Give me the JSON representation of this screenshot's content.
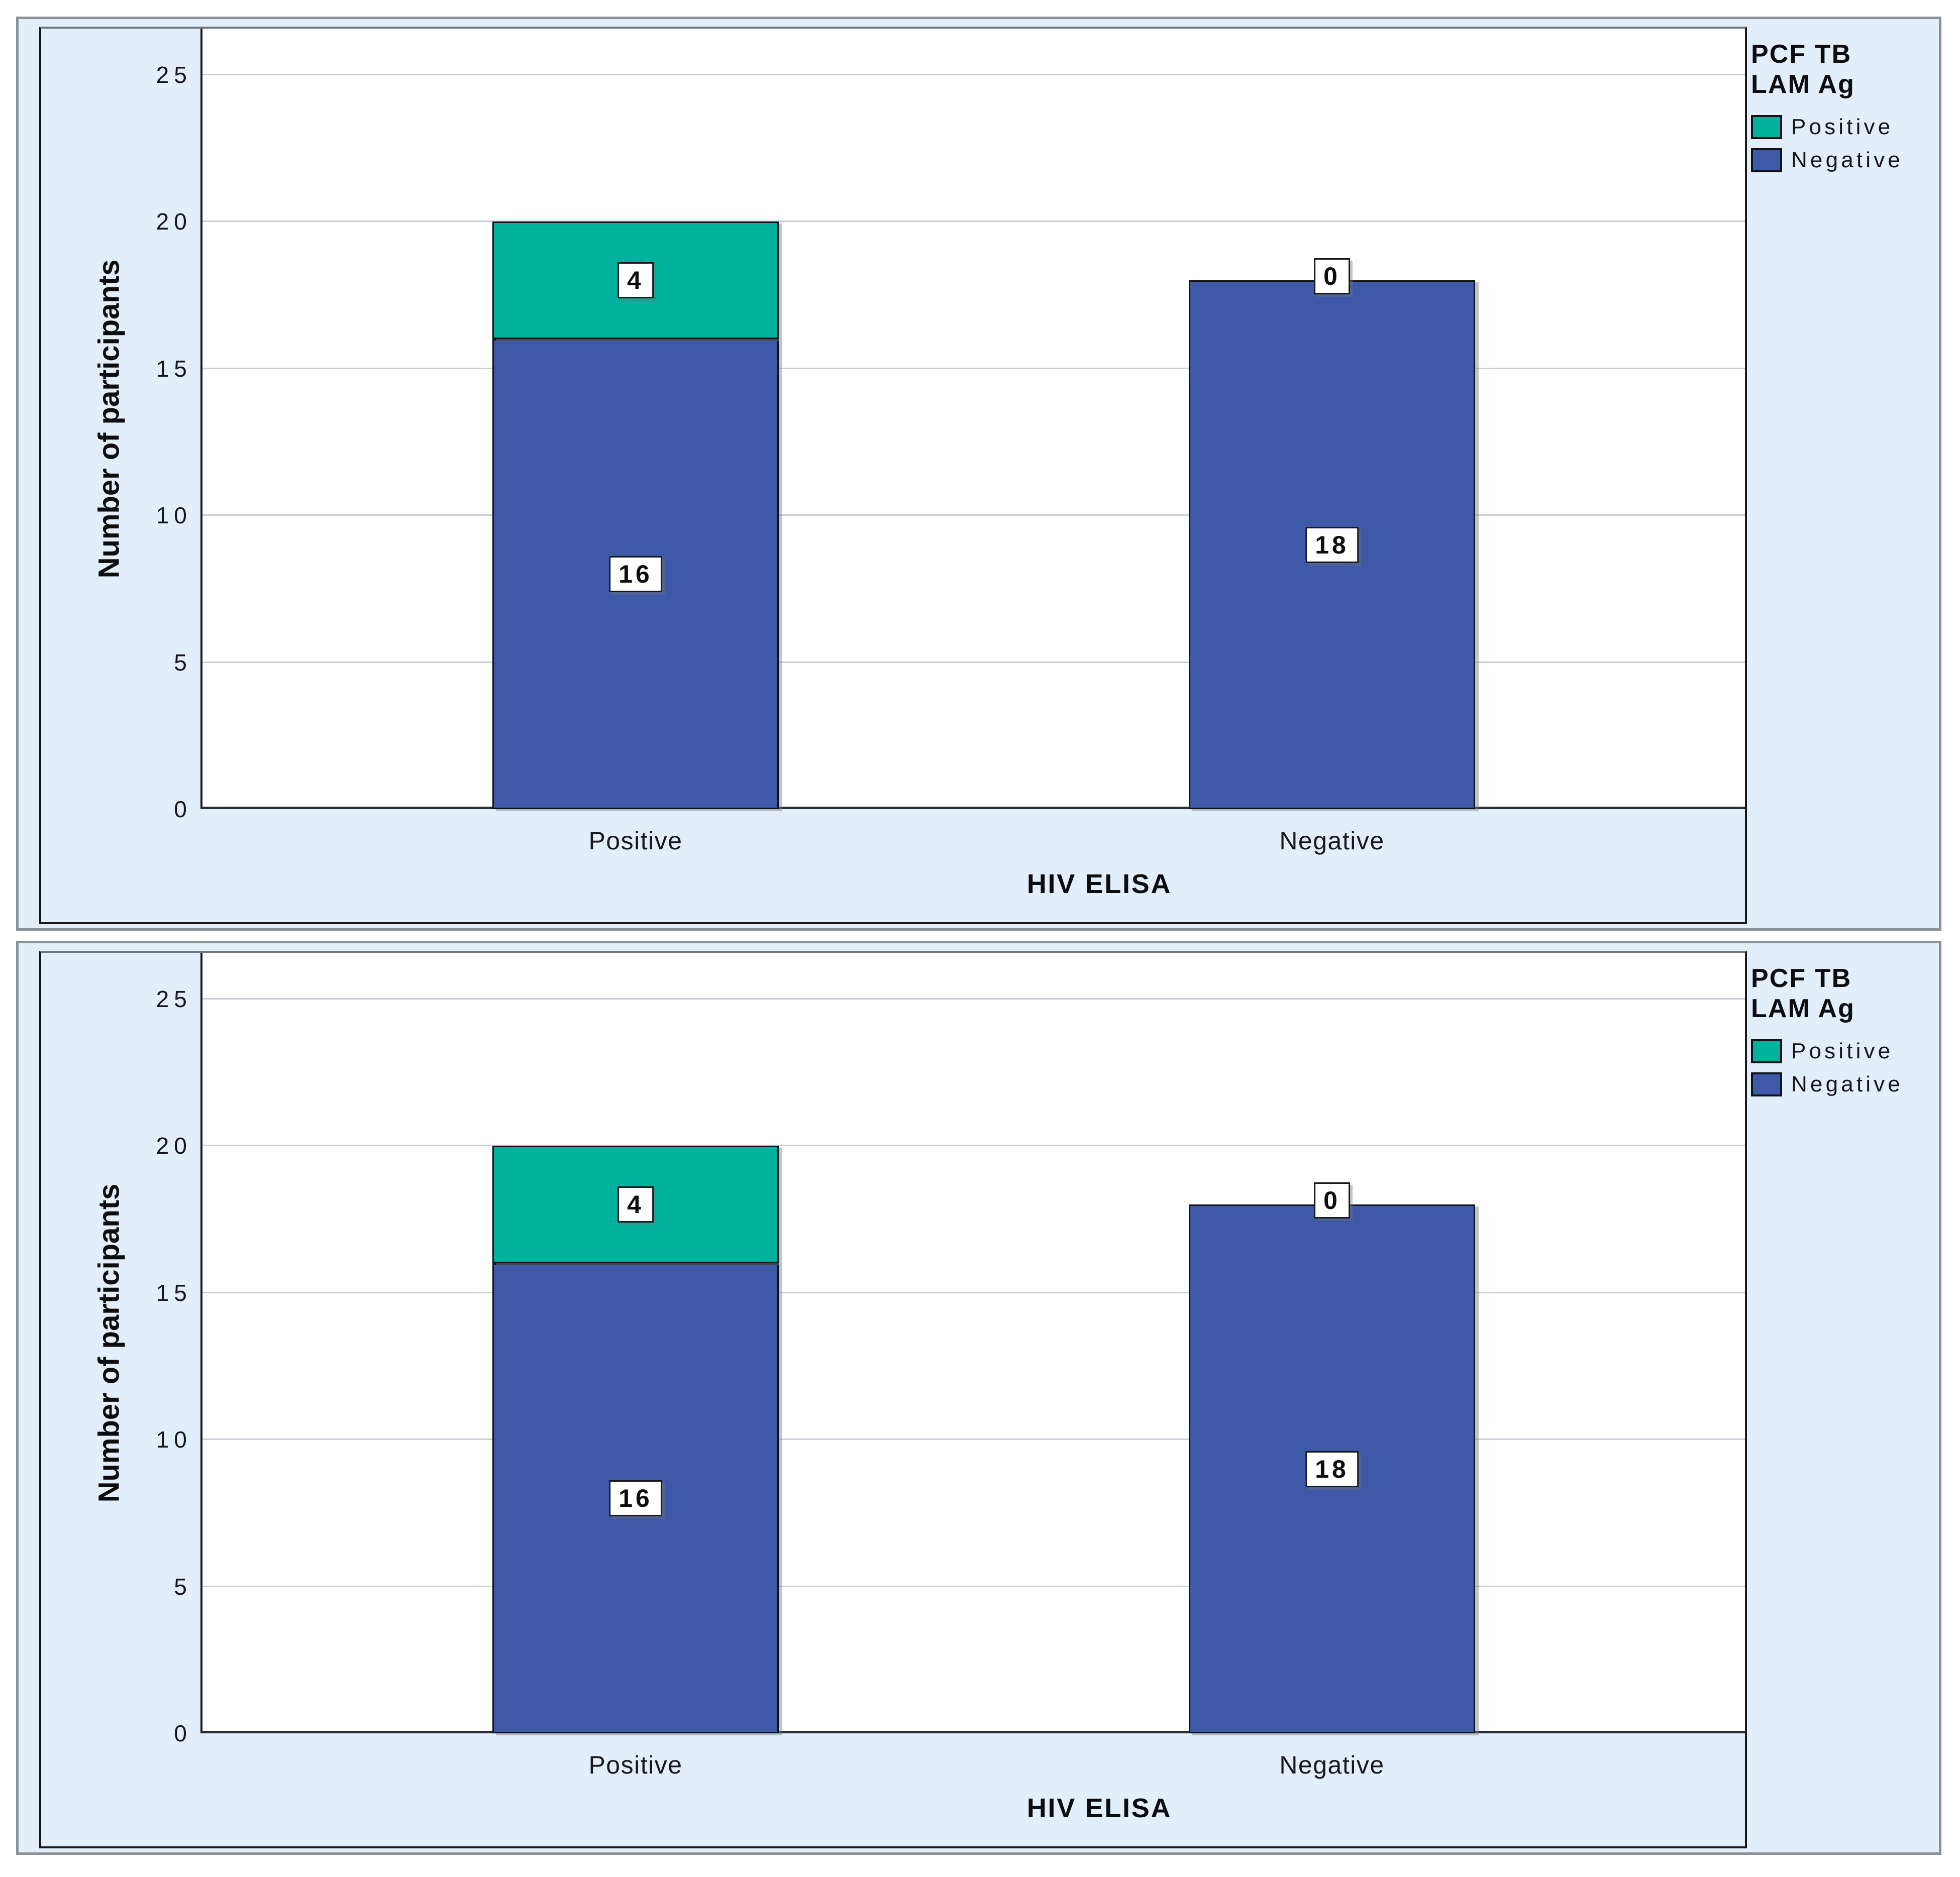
{
  "window": {
    "background": "#ffffff",
    "panel_count": 2
  },
  "chart_data": [
    {
      "type": "bar",
      "subtype": "stacked-vertical",
      "position": "top",
      "title": "",
      "xlabel": "HIV ELISA",
      "ylabel": "Number of participants",
      "categories": [
        "Positive",
        "Negative"
      ],
      "series": [
        {
          "name": "Positive",
          "color": "#00B29D",
          "values": [
            4,
            0
          ]
        },
        {
          "name": "Negative",
          "color": "#3E59A8",
          "values": [
            16,
            18
          ]
        }
      ],
      "stack_bottom_to_top": [
        "Negative",
        "Positive"
      ],
      "totals": [
        20,
        18
      ],
      "yticks": [
        0,
        5,
        10,
        15,
        20,
        25
      ],
      "ylim": [
        0,
        26.6
      ],
      "grid": "horizontal",
      "legend": {
        "position": "top-right",
        "title_lines": [
          "PCF TB",
          "LAM Ag"
        ],
        "entries": [
          {
            "label": "Positive",
            "color": "#00B29D"
          },
          {
            "label": "Negative",
            "color": "#3E59A8"
          }
        ]
      },
      "style": {
        "panel_bg": "#E3EEFB",
        "plot_bg": "#FFFFFF",
        "gridline": "#C9CED6",
        "bar_border": "#101418",
        "value_label_bg": "#FFFFFF",
        "value_label_border": "#16181B"
      }
    },
    {
      "type": "bar",
      "subtype": "stacked-vertical",
      "position": "bottom",
      "title": "",
      "xlabel": "HIV ELISA",
      "ylabel": "Number of participants",
      "categories": [
        "Positive",
        "Negative"
      ],
      "series": [
        {
          "name": "Positive",
          "color": "#00B29D",
          "values": [
            4,
            0
          ]
        },
        {
          "name": "Negative",
          "color": "#3E59A8",
          "values": [
            16,
            18
          ]
        }
      ],
      "stack_bottom_to_top": [
        "Negative",
        "Positive"
      ],
      "totals": [
        20,
        18
      ],
      "yticks": [
        0,
        5,
        10,
        15,
        20,
        25
      ],
      "ylim": [
        0,
        26.6
      ],
      "grid": "horizontal",
      "legend": {
        "position": "top-right",
        "title_lines": [
          "PCF TB",
          "LAM Ag"
        ],
        "entries": [
          {
            "label": "Positive",
            "color": "#00B29D"
          },
          {
            "label": "Negative",
            "color": "#3E59A8"
          }
        ]
      },
      "style": {
        "panel_bg": "#E3EEFB",
        "plot_bg": "#FFFFFF",
        "gridline": "#C9CED6",
        "bar_border": "#101418",
        "value_label_bg": "#FFFFFF",
        "value_label_border": "#16181B"
      }
    }
  ]
}
